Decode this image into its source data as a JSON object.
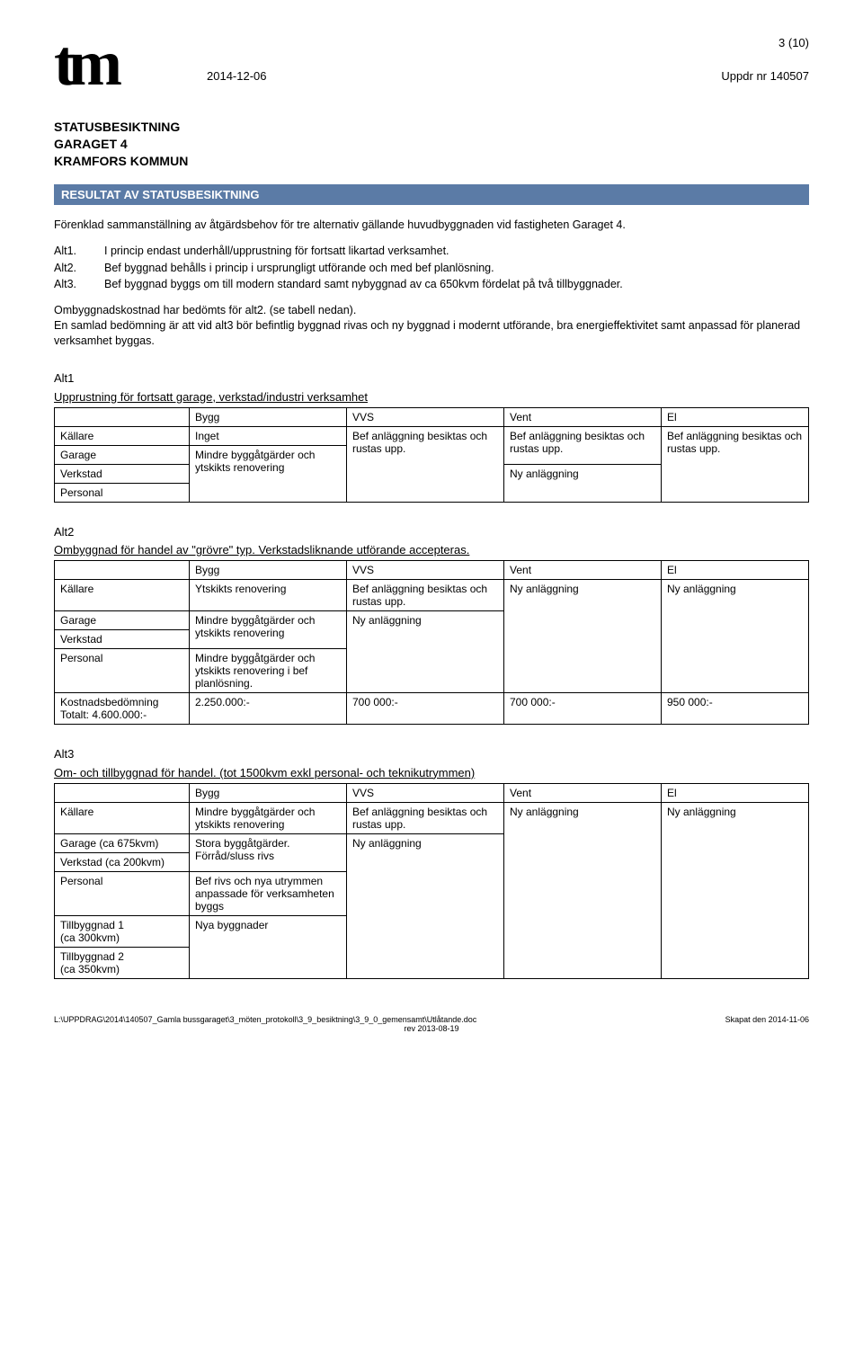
{
  "header": {
    "page_indicator": "3 (10)",
    "date": "2014-12-06",
    "assignment": "Uppdr nr 140507"
  },
  "title_block": {
    "line1": "STATUSBESIKTNING",
    "line2": "GARAGET 4",
    "line3": "KRAMFORS KOMMUN"
  },
  "section_bar": "RESULTAT AV STATUSBESIKTNING",
  "intro": "Förenklad sammanställning av åtgärdsbehov för tre alternativ gällande huvudbyggnaden vid fastigheten Garaget 4.",
  "alts": {
    "a1_label": "Alt1.",
    "a1_text": "I princip endast underhåll/upprustning för fortsatt likartad verksamhet.",
    "a2_label": "Alt2.",
    "a2_text": "Bef byggnad behålls i princip i ursprungligt utförande och med bef planlösning.",
    "a3_label": "Alt3.",
    "a3_text": "Bef byggnad byggs om till modern standard samt nybyggnad av ca 650kvm fördelat på två tillbyggnader."
  },
  "para": "Ombyggnadskostnad har bedömts för alt2. (se tabell nedan).\nEn samlad bedömning är att vid alt3 bör befintlig byggnad rivas och ny byggnad i modernt utförande, bra energieffektivitet samt anpassad för planerad verksamhet byggas.",
  "alt1": {
    "heading": "Alt1",
    "sub": "Upprustning för fortsatt garage, verkstad/industri verksamhet",
    "cols": {
      "c0": "",
      "c1": "Bygg",
      "c2": "VVS",
      "c3": "Vent",
      "c4": "El"
    },
    "rows": {
      "r0": "Källare",
      "r1": "Garage",
      "r2": "Verkstad",
      "r3": "Personal"
    },
    "cells": {
      "inget": "Inget",
      "bygg_garage": "Mindre byggåtgärder och ytskikts renovering",
      "vvs": "Bef anläggning besiktas och rustas upp.",
      "vent_top": "Bef anläggning besiktas och rustas upp.",
      "vent_bot": "Ny anläggning",
      "el": "Bef anläggning besiktas och rustas upp."
    }
  },
  "alt2": {
    "heading": "Alt2",
    "sub": "Ombyggnad för handel av \"grövre\" typ. Verkstadsliknande utförande accepteras.",
    "cols": {
      "c0": "",
      "c1": "Bygg",
      "c2": "VVS",
      "c3": "Vent",
      "c4": "El"
    },
    "rows": {
      "r0": "Källare",
      "r1": "Garage",
      "r2": "Verkstad",
      "r3": "Personal",
      "r4a": "Kostnadsbedömning",
      "r4b": "Totalt: 4.600.000:-"
    },
    "cells": {
      "c_kallare_bygg": "Ytskikts renovering",
      "c_kallare_vvs": "Bef anläggning besiktas och rustas upp.",
      "c_garage_bygg": "Mindre byggåtgärder och ytskikts renovering",
      "c_personal_bygg": "Mindre byggåtgärder och ytskikts renovering i bef planlösning.",
      "c_ny": "Ny anläggning",
      "c_bygg_cost": "2.250.000:-",
      "c_vvs_cost": "700 000:-",
      "c_vent_cost": "700 000:-",
      "c_el_cost": "950 000:-"
    }
  },
  "alt3": {
    "heading": "Alt3",
    "sub": "Om- och tillbyggnad för handel. (tot 1500kvm exkl personal- och teknikutrymmen)",
    "cols": {
      "c0": "",
      "c1": "Bygg",
      "c2": "VVS",
      "c3": "Vent",
      "c4": "El"
    },
    "rows": {
      "r0": "Källare",
      "r1": "Garage (ca 675kvm)",
      "r2": "Verkstad (ca 200kvm)",
      "r3": "Personal",
      "r4a": "Tillbyggnad 1",
      "r4b": "(ca 300kvm)",
      "r5a": "Tillbyggnad 2",
      "r5b": "(ca 350kvm)"
    },
    "cells": {
      "kallare_bygg": "Mindre byggåtgärder och ytskikts renovering",
      "kallare_vvs": "Bef anläggning besiktas och rustas upp.",
      "garage_bygg": "Stora byggåtgärder. Förråd/sluss rivs",
      "personal_bygg": "Bef rivs och nya utrymmen anpassade för verksamheten byggs",
      "till_bygg": "Nya byggnader",
      "ny": "Ny anläggning"
    }
  },
  "footer": {
    "left": "L:\\UPPDRAG\\2014\\140507_Gamla bussgaraget\\3_möten_protokoll\\3_9_besiktning\\3_9_0_gemensamt\\Utlåtande.doc",
    "center": "rev 2013-08-19",
    "right": "Skapat den 2014-11-06"
  }
}
